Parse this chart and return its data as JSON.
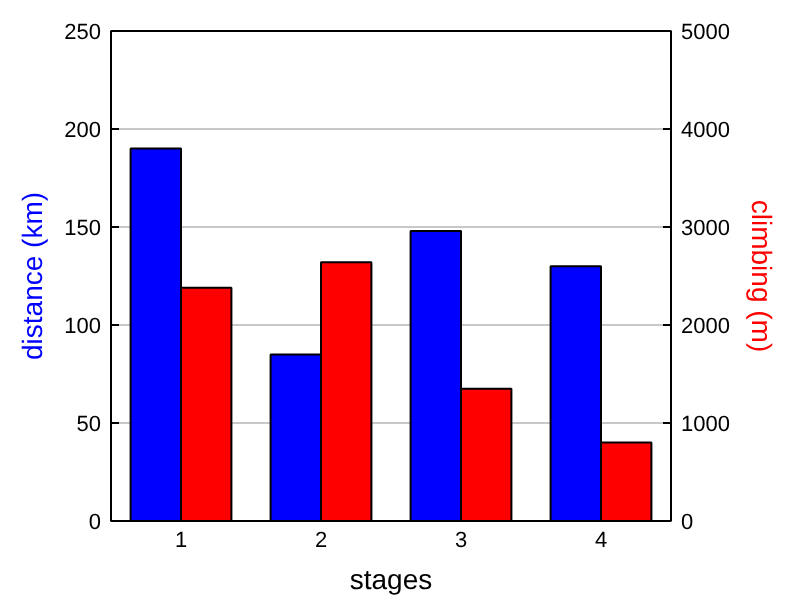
{
  "chart_data": {
    "type": "bar",
    "xlabel": "stages",
    "ylabel": "distance (km)",
    "y2label": "climbing (m)",
    "categories": [
      "1",
      "2",
      "3",
      "4"
    ],
    "series": [
      {
        "color": "#0000ff",
        "values": [
          190,
          85,
          148,
          130
        ]
      },
      {
        "color": "#ff0000",
        "values": [
          2380,
          2640,
          1350,
          800
        ],
        "axis": "y2"
      }
    ],
    "ylim": [
      0,
      250
    ],
    "yticks": [
      0,
      50,
      100,
      150,
      200,
      250
    ],
    "y2lim": [
      0,
      5000
    ],
    "y2ticks": [
      0,
      1000,
      2000,
      3000,
      4000,
      5000
    ],
    "grid": "y"
  }
}
